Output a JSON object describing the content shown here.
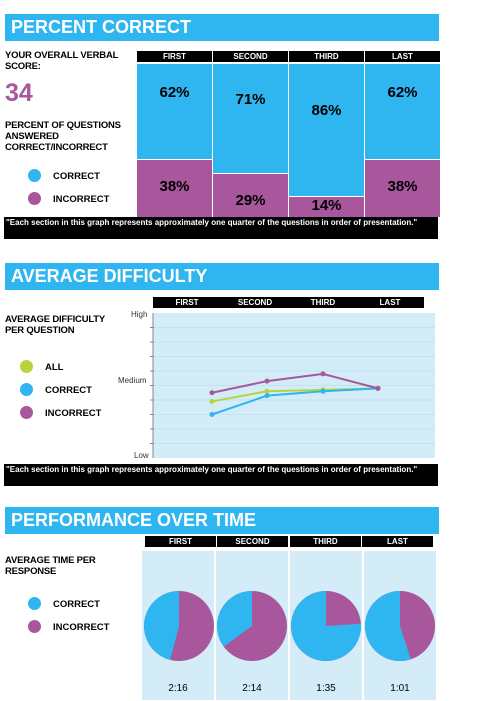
{
  "colors": {
    "correct": "#2fb5ef",
    "incorrect": "#a9579d",
    "all": "#b8d43d",
    "banner": "#2fb5ef",
    "panel": "#d3ecf8"
  },
  "section1": {
    "title": "PERCENT CORRECT",
    "overall_label": "YOUR OVERALL VERBAL SCORE:",
    "score": "34",
    "pct_label": "PERCENT OF QUESTIONS ANSWERED CORRECT/INCORRECT",
    "legend": {
      "correct": "CORRECT",
      "incorrect": "INCORRECT"
    },
    "note": "\"Each section in this graph represents approximately one quarter of the questions in order of presentation.\""
  },
  "section2": {
    "title": "AVERAGE DIFFICULTY",
    "label": "AVERAGE DIFFICULTY PER QUESTION",
    "legend": {
      "all": "ALL",
      "correct": "CORRECT",
      "incorrect": "INCORRECT"
    },
    "axis": {
      "high": "High",
      "medium": "Medium",
      "low": "Low"
    },
    "note": "\"Each section in this graph represents approximately one quarter of the questions in order of presentation.\""
  },
  "section3": {
    "title": "PERFORMANCE OVER TIME",
    "label": "AVERAGE TIME PER RESPONSE",
    "legend": {
      "correct": "CORRECT",
      "incorrect": "INCORRECT"
    }
  },
  "chart_data": [
    {
      "type": "bar",
      "categories": [
        "FIRST",
        "SECOND",
        "THIRD",
        "LAST"
      ],
      "series": [
        {
          "name": "CORRECT",
          "values": [
            62,
            71,
            86,
            62
          ]
        },
        {
          "name": "INCORRECT",
          "values": [
            38,
            29,
            14,
            38
          ]
        }
      ],
      "value_labels": {
        "correct": [
          "62%",
          "71%",
          "86%",
          "62%"
        ],
        "incorrect": [
          "38%",
          "29%",
          "14%",
          "38%"
        ]
      },
      "stacked": true,
      "ylim": [
        0,
        100
      ]
    },
    {
      "type": "line",
      "categories": [
        "FIRST",
        "SECOND",
        "THIRD",
        "LAST"
      ],
      "ytick_labels": [
        "High",
        "Medium",
        "Low"
      ],
      "ylim": [
        0,
        10
      ],
      "series": [
        {
          "name": "ALL",
          "values": [
            3.9,
            4.6,
            4.7,
            4.8
          ]
        },
        {
          "name": "CORRECT",
          "values": [
            3.0,
            4.3,
            4.6,
            4.8
          ]
        },
        {
          "name": "INCORRECT",
          "values": [
            4.5,
            5.3,
            5.8,
            4.8
          ]
        }
      ],
      "grid": true
    },
    {
      "type": "pie",
      "categories": [
        "FIRST",
        "SECOND",
        "THIRD",
        "LAST"
      ],
      "series": [
        {
          "name": "CORRECT",
          "values": [
            46,
            35,
            76,
            55
          ]
        },
        {
          "name": "INCORRECT",
          "values": [
            54,
            65,
            24,
            45
          ]
        }
      ],
      "times": [
        "2:16",
        "2:14",
        "1:35",
        "1:01"
      ]
    }
  ]
}
